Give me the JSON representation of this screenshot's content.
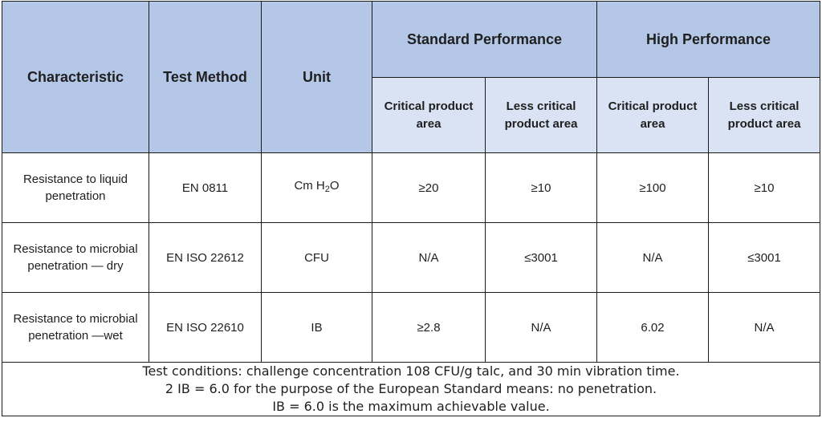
{
  "headers": {
    "characteristic": "Characteristic",
    "test_method": "Test Method",
    "unit": "Unit",
    "standard_performance": "Standard Performance",
    "high_performance": "High Performance",
    "critical_area": "Critical product area",
    "less_critical_area": "Less critical product area"
  },
  "rows": [
    {
      "characteristic": "Resistance to liquid penetration",
      "test_method": "EN 0811",
      "unit_base": "Cm H",
      "unit_sub": "2",
      "unit_tail": "O",
      "std_critical": "≥20",
      "std_less": "≥10",
      "high_critical": "≥100",
      "high_less": "≥10"
    },
    {
      "characteristic": "Resistance to microbial penetration — dry",
      "test_method": "EN ISO 22612",
      "unit": "CFU",
      "std_critical": "N/A",
      "std_less": "≤3001",
      "high_critical": "N/A",
      "high_less": "≤3001"
    },
    {
      "characteristic": "Resistance to microbial penetration —wet",
      "test_method": "EN ISO 22610",
      "unit": "IB",
      "std_critical": "≥2.8",
      "std_less": "N/A",
      "high_critical": "6.02",
      "high_less": "N/A"
    }
  ],
  "notes": [
    "Test conditions: challenge concentration 108 CFU/g talc, and 30 min vibration time.",
    "2 IB = 6.0 for the purpose of the European Standard means: no penetration.",
    "IB = 6.0 is the maximum achievable value."
  ]
}
